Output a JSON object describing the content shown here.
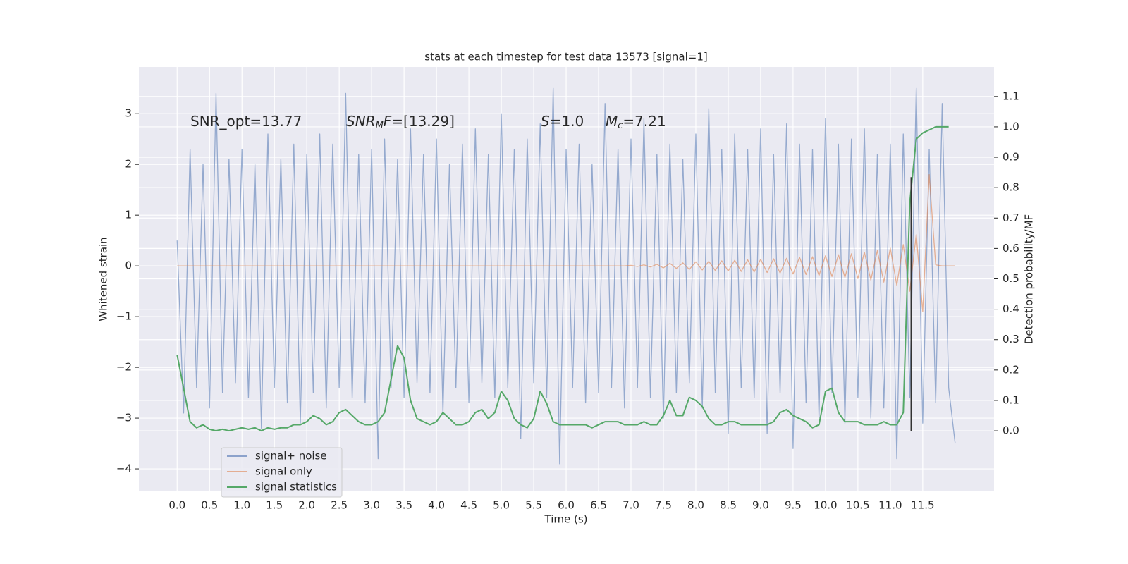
{
  "chart_data": {
    "type": "line",
    "title": "stats at each timestep for test data 13573 [signal=1]",
    "xlabel": "Time (s)",
    "ylabel": "Whitened strain",
    "y2label": "Detection probability/MF",
    "annotations": [
      [
        {
          "text": "SNR_opt=13.77",
          "style": "normal"
        }
      ],
      [
        {
          "text": "SNR",
          "style": "italic"
        },
        {
          "text": "M",
          "style": "sub"
        },
        {
          "text": "F",
          "style": "italic"
        },
        {
          "text": "=[13.29]",
          "style": "normal"
        }
      ],
      [
        {
          "text": "S",
          "style": "italic"
        },
        {
          "text": "=1.0",
          "style": "normal"
        }
      ],
      [
        {
          "text": "M",
          "style": "italic"
        },
        {
          "text": "c",
          "style": "sub"
        },
        {
          "text": "=7.21",
          "style": "normal"
        }
      ]
    ],
    "x": [
      0.0,
      0.1,
      0.2,
      0.3,
      0.4,
      0.5,
      0.6,
      0.7,
      0.8,
      0.9,
      1.0,
      1.1,
      1.2,
      1.3,
      1.4,
      1.5,
      1.6,
      1.7,
      1.8,
      1.9,
      2.0,
      2.1,
      2.2,
      2.3,
      2.4,
      2.5,
      2.6,
      2.7,
      2.8,
      2.9,
      3.0,
      3.1,
      3.2,
      3.3,
      3.4,
      3.5,
      3.6,
      3.7,
      3.8,
      3.9,
      4.0,
      4.1,
      4.2,
      4.3,
      4.4,
      4.5,
      4.6,
      4.7,
      4.8,
      4.9,
      5.0,
      5.1,
      5.2,
      5.3,
      5.4,
      5.5,
      5.6,
      5.7,
      5.8,
      5.9,
      6.0,
      6.1,
      6.2,
      6.3,
      6.4,
      6.5,
      6.6,
      6.7,
      6.8,
      6.9,
      7.0,
      7.1,
      7.2,
      7.3,
      7.4,
      7.5,
      7.6,
      7.7,
      7.8,
      7.9,
      8.0,
      8.1,
      8.2,
      8.3,
      8.4,
      8.5,
      8.6,
      8.7,
      8.8,
      8.9,
      9.0,
      9.1,
      9.2,
      9.3,
      9.4,
      9.5,
      9.6,
      9.7,
      9.8,
      9.9,
      10.0,
      10.1,
      10.2,
      10.3,
      10.4,
      10.5,
      10.6,
      10.7,
      10.8,
      10.9,
      11.0,
      11.1,
      11.2,
      11.3,
      11.4,
      11.5,
      11.6,
      11.7,
      11.8,
      11.9,
      12.0
    ],
    "series": [
      {
        "name": "signal+ noise",
        "color": "#4c72b0",
        "axis": "y",
        "values": [
          0.5,
          -2.9,
          2.3,
          -2.4,
          2.0,
          -2.8,
          3.4,
          -2.5,
          2.1,
          -2.3,
          2.3,
          -2.6,
          2.0,
          -3.2,
          2.6,
          -2.4,
          2.1,
          -2.7,
          2.4,
          -3.1,
          2.2,
          -2.5,
          2.6,
          -2.8,
          2.4,
          -2.4,
          3.4,
          -2.6,
          2.2,
          -2.7,
          2.3,
          -3.8,
          2.5,
          -2.4,
          2.1,
          -2.6,
          2.7,
          -2.3,
          2.2,
          -2.5,
          2.5,
          -2.9,
          2.0,
          -2.4,
          2.4,
          -2.7,
          2.7,
          -2.3,
          2.2,
          -2.6,
          3.0,
          -2.4,
          2.3,
          -3.4,
          2.5,
          -2.3,
          2.8,
          -2.6,
          3.5,
          -3.9,
          2.3,
          -2.4,
          2.4,
          -2.7,
          2.0,
          -2.5,
          3.2,
          -2.4,
          2.3,
          -2.8,
          2.5,
          -2.4,
          2.9,
          -2.6,
          2.2,
          -3.0,
          2.4,
          -2.5,
          2.1,
          -2.3,
          2.6,
          -2.8,
          3.1,
          -2.5,
          2.3,
          -3.3,
          2.6,
          -2.4,
          2.3,
          -2.6,
          2.7,
          -3.3,
          2.2,
          -2.5,
          2.8,
          -3.6,
          2.4,
          -2.7,
          2.3,
          -3.0,
          2.9,
          -2.5,
          2.4,
          -3.1,
          2.5,
          -2.6,
          2.7,
          -3.0,
          2.2,
          -2.8,
          2.4,
          -3.8,
          2.6,
          -2.6,
          3.5,
          -3.1,
          2.3,
          -2.7,
          3.2,
          -2.4,
          -3.5
        ]
      },
      {
        "name": "signal only",
        "color": "#dd8452",
        "axis": "y",
        "values": [
          0,
          0,
          0,
          0,
          0,
          0,
          0,
          0,
          0,
          0,
          0,
          0,
          0,
          0,
          0,
          0,
          0,
          0,
          0,
          0,
          0,
          0,
          0,
          0,
          0,
          0,
          0,
          0,
          0,
          0,
          0,
          0,
          0,
          0,
          0,
          0,
          0,
          0,
          0,
          0,
          0,
          0,
          0,
          0,
          0,
          0,
          0,
          0,
          0,
          0,
          0,
          0,
          0,
          0,
          0,
          0,
          0,
          0,
          0,
          0,
          0,
          0,
          0,
          0,
          0,
          0,
          0,
          0,
          0,
          0,
          0.01,
          -0.01,
          0.02,
          -0.02,
          0.03,
          -0.04,
          0.05,
          -0.05,
          0.06,
          -0.07,
          0.08,
          -0.08,
          0.09,
          -0.09,
          0.1,
          -0.1,
          0.11,
          -0.11,
          0.12,
          -0.12,
          0.13,
          -0.13,
          0.14,
          -0.14,
          0.15,
          -0.16,
          0.17,
          -0.17,
          0.18,
          -0.19,
          0.2,
          -0.21,
          0.22,
          -0.23,
          0.24,
          -0.25,
          0.27,
          -0.28,
          0.3,
          -0.32,
          0.35,
          -0.38,
          0.42,
          -0.5,
          0.62,
          -0.9,
          1.8,
          0.02,
          0,
          0,
          0
        ]
      },
      {
        "name": "signal statistics",
        "color": "#55a868",
        "axis": "y2",
        "values": [
          0.25,
          0.14,
          0.03,
          0.01,
          0.02,
          0.005,
          0.0,
          0.005,
          0.0,
          0.005,
          0.01,
          0.005,
          0.01,
          0.0,
          0.01,
          0.005,
          0.01,
          0.01,
          0.02,
          0.02,
          0.03,
          0.05,
          0.04,
          0.02,
          0.03,
          0.06,
          0.07,
          0.05,
          0.03,
          0.02,
          0.02,
          0.03,
          0.06,
          0.17,
          0.28,
          0.24,
          0.1,
          0.04,
          0.03,
          0.02,
          0.03,
          0.06,
          0.04,
          0.02,
          0.02,
          0.03,
          0.06,
          0.07,
          0.04,
          0.06,
          0.13,
          0.1,
          0.04,
          0.02,
          0.01,
          0.04,
          0.13,
          0.09,
          0.03,
          0.02,
          0.02,
          0.02,
          0.02,
          0.02,
          0.01,
          0.02,
          0.03,
          0.03,
          0.03,
          0.02,
          0.02,
          0.02,
          0.03,
          0.02,
          0.02,
          0.05,
          0.1,
          0.05,
          0.05,
          0.11,
          0.1,
          0.08,
          0.04,
          0.02,
          0.02,
          0.03,
          0.03,
          0.02,
          0.02,
          0.02,
          0.02,
          0.02,
          0.03,
          0.06,
          0.07,
          0.05,
          0.04,
          0.03,
          0.01,
          0.02,
          0.13,
          0.14,
          0.06,
          0.03,
          0.03,
          0.03,
          0.02,
          0.02,
          0.02,
          0.03,
          0.02,
          0.02,
          0.06,
          0.75,
          0.96,
          0.98,
          0.99,
          1.0,
          1.0,
          1.0,
          null
        ]
      }
    ],
    "vline": {
      "x": 11.32,
      "y": [
        -3.25,
        1.75
      ],
      "color": "#333333"
    },
    "xlim": [
      -0.59,
      12.6
    ],
    "xticks": [
      {
        "value": 0,
        "label": "0.0"
      },
      0.5,
      {
        "value": 1,
        "label": "1.0"
      },
      1.5,
      {
        "value": 2,
        "label": "2.0"
      },
      2.5,
      {
        "value": 3,
        "label": "3.0"
      },
      3.5,
      {
        "value": 4,
        "label": "4.0"
      },
      4.5,
      {
        "value": 5,
        "label": "5.0"
      },
      5.5,
      {
        "value": 6,
        "label": "6.0"
      },
      6.5,
      {
        "value": 7,
        "label": "7.0"
      },
      7.5,
      {
        "value": 8,
        "label": "8.0"
      },
      8.5,
      {
        "value": 9,
        "label": "9.0"
      },
      9.5,
      {
        "value": 10,
        "label": "10.0"
      },
      10.5,
      {
        "value": 11,
        "label": "11.0"
      },
      11.5
    ],
    "ylim": [
      -4.43,
      3.92
    ],
    "yticks": [
      {
        "value": -4,
        "label": "−4"
      },
      {
        "value": -3,
        "label": "−3"
      },
      {
        "value": -2,
        "label": "−2"
      },
      {
        "value": -1,
        "label": "−1"
      },
      0,
      1,
      2,
      3
    ],
    "y2lim": [
      -0.197,
      1.197
    ],
    "y2ticks": [
      {
        "value": 0,
        "label": "0.0"
      },
      0.1,
      0.2,
      0.3,
      0.4,
      0.5,
      0.6,
      0.7,
      0.8,
      0.9,
      {
        "value": 1,
        "label": "1.0"
      },
      1.1
    ],
    "grid": true,
    "legend": "lower left"
  }
}
